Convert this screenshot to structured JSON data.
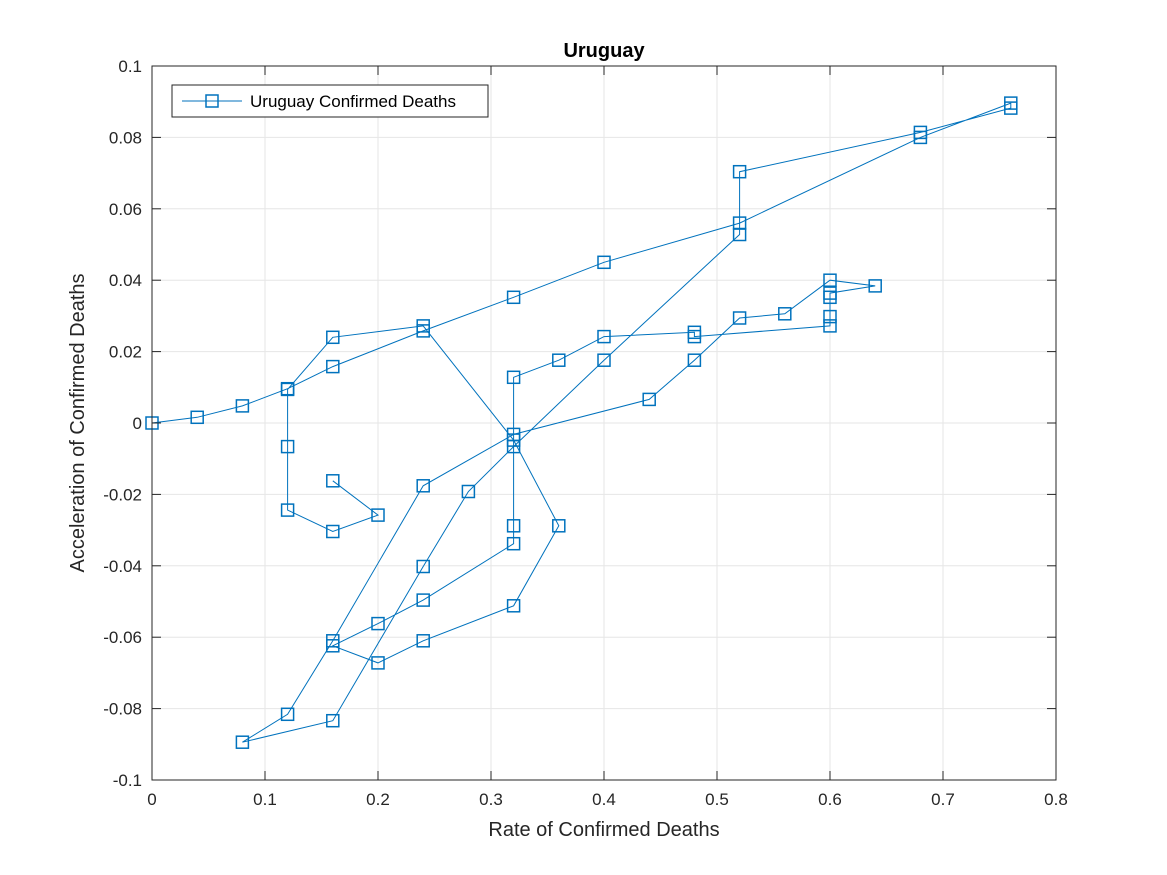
{
  "chart_data": {
    "type": "line",
    "title": "Uruguay",
    "xlabel": "Rate of Confirmed Deaths",
    "ylabel": "Acceleration of Confirmed Deaths",
    "xlim": [
      0,
      0.8
    ],
    "ylim": [
      -0.1,
      0.1
    ],
    "xticks": [
      0,
      0.1,
      0.2,
      0.3,
      0.4,
      0.5,
      0.6,
      0.7,
      0.8
    ],
    "xtick_labels": [
      "0",
      "0.1",
      "0.2",
      "0.3",
      "0.4",
      "0.5",
      "0.6",
      "0.7",
      "0.8"
    ],
    "yticks": [
      -0.1,
      -0.08,
      -0.06,
      -0.04,
      -0.02,
      0,
      0.02,
      0.04,
      0.06,
      0.08,
      0.1
    ],
    "ytick_labels": [
      "-0.1",
      "-0.08",
      "-0.06",
      "-0.04",
      "-0.02",
      "0",
      "0.02",
      "0.04",
      "0.06",
      "0.08",
      "0.1"
    ],
    "grid": true,
    "legend_location": "top-left",
    "series": [
      {
        "name": "Uruguay Confirmed Deaths",
        "color": "#0072BD",
        "marker": "square",
        "x": [
          0,
          0.04,
          0.08,
          0.12,
          0.16,
          0.24,
          0.32,
          0.4,
          0.52,
          0.68,
          0.76,
          0.76,
          0.68,
          0.52,
          0.52,
          0.4,
          0.32,
          0.28,
          0.24,
          0.16,
          0.08,
          0.12,
          0.16,
          0.24,
          0.32,
          0.44,
          0.48,
          0.52,
          0.56,
          0.6,
          0.64,
          0.6,
          0.6,
          0.6,
          0.6,
          0.48,
          0.48,
          0.4,
          0.36,
          0.32,
          0.32,
          0.32,
          0.24,
          0.2,
          0.16,
          0.2,
          0.24,
          0.32,
          0.36,
          0.32,
          0.24,
          0.16,
          0.12,
          0.12,
          0.12,
          0.16,
          0.2,
          0.16
        ],
        "y": [
          0,
          0.0016,
          0.0048,
          0.0096,
          0.0158,
          0.0258,
          0.0352,
          0.045,
          0.056,
          0.08,
          0.0896,
          0.0882,
          0.0814,
          0.0704,
          0.0528,
          0.0176,
          -0.0066,
          -0.0192,
          -0.0402,
          -0.0834,
          -0.0894,
          -0.0816,
          -0.061,
          -0.0176,
          -0.0032,
          0.0066,
          0.0176,
          0.0294,
          0.0306,
          0.04,
          0.0384,
          0.0364,
          0.0352,
          0.0298,
          0.0272,
          0.0242,
          0.0254,
          0.0242,
          0.0176,
          0.0128,
          -0.0288,
          -0.0338,
          -0.0496,
          -0.0562,
          -0.0624,
          -0.0672,
          -0.061,
          -0.0512,
          -0.0288,
          -0.0048,
          0.0272,
          0.024,
          0.0094,
          -0.0066,
          -0.0244,
          -0.0304,
          -0.0258,
          -0.0162
        ]
      }
    ]
  }
}
